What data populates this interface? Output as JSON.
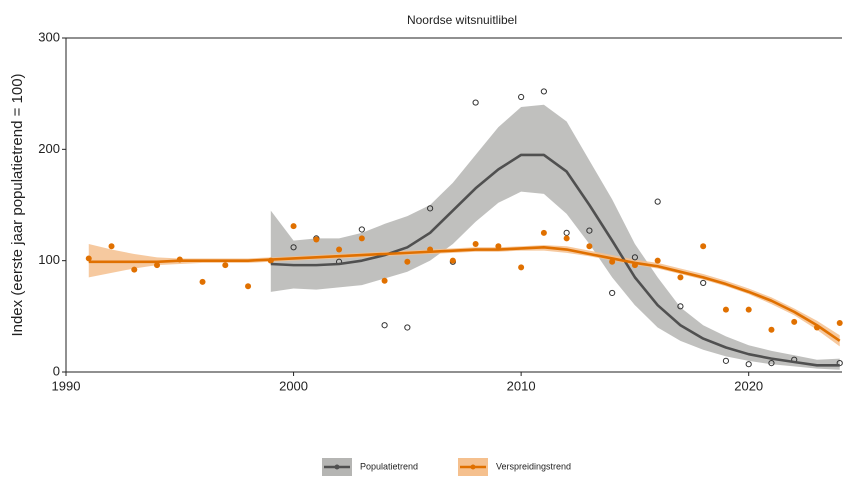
{
  "chart_data": {
    "type": "line",
    "title": "Noordse witsnuitlibel",
    "y_label": "Index (eerste jaar populatietrend = 100)",
    "xlim": [
      1990,
      2024.1
    ],
    "xticks": [
      1990,
      2000,
      2010,
      2020
    ],
    "ylim": [
      0,
      300
    ],
    "yticks": [
      0,
      100,
      200,
      300
    ],
    "grid": false,
    "legend": "bottom",
    "series": [
      {
        "name": "Populatietrend",
        "color": "#505050",
        "fill": "#b5b5b3",
        "x": [
          1999,
          2000,
          2001,
          2002,
          2003,
          2004,
          2005,
          2006,
          2007,
          2008,
          2009,
          2010,
          2011,
          2012,
          2013,
          2014,
          2015,
          2016,
          2017,
          2018,
          2019,
          2020,
          2021,
          2022,
          2023,
          2024
        ],
        "values": [
          97,
          96,
          96,
          97,
          100,
          105,
          112,
          125,
          145,
          165,
          182,
          195,
          195,
          180,
          150,
          118,
          85,
          60,
          42,
          30,
          22,
          16,
          12,
          9,
          6,
          6
        ],
        "lower": [
          72,
          75,
          74,
          76,
          78,
          84,
          90,
          100,
          115,
          135,
          152,
          162,
          160,
          142,
          115,
          85,
          60,
          40,
          28,
          20,
          14,
          10,
          7,
          5,
          3,
          2
        ],
        "upper": [
          145,
          118,
          120,
          120,
          125,
          133,
          140,
          150,
          170,
          195,
          220,
          238,
          240,
          225,
          190,
          155,
          115,
          85,
          58,
          42,
          32,
          24,
          19,
          15,
          11,
          12
        ]
      },
      {
        "name": "Verspreidingstrend",
        "color": "#e07000",
        "fill": "#f5c08e",
        "x": [
          1991,
          1992,
          1993,
          1994,
          1995,
          1996,
          1997,
          1998,
          1999,
          2000,
          2001,
          2002,
          2003,
          2004,
          2005,
          2006,
          2007,
          2008,
          2009,
          2010,
          2011,
          2012,
          2013,
          2014,
          2015,
          2016,
          2017,
          2018,
          2019,
          2020,
          2021,
          2022,
          2023,
          2024
        ],
        "values": [
          99,
          99,
          99,
          99,
          100,
          100,
          100,
          100,
          101,
          102,
          103,
          104,
          105,
          106,
          107,
          108,
          109,
          110,
          110,
          111,
          112,
          110,
          106,
          102,
          98,
          95,
          90,
          85,
          79,
          72,
          64,
          54,
          42,
          28
        ],
        "lower": [
          85,
          89,
          93,
          96,
          97,
          98,
          98,
          98,
          99,
          100,
          101,
          102,
          103,
          104,
          105,
          106,
          107,
          108,
          108,
          109,
          109,
          107,
          104,
          100,
          96,
          93,
          88,
          83,
          77,
          70,
          61,
          51,
          38,
          23
        ],
        "upper": [
          115,
          110,
          106,
          103,
          102,
          102,
          102,
          102,
          103,
          104,
          105,
          106,
          107,
          108,
          109,
          110,
          111,
          112,
          112,
          113,
          114,
          113,
          109,
          105,
          101,
          98,
          93,
          88,
          82,
          75,
          67,
          57,
          46,
          33
        ]
      }
    ],
    "observations": [
      {
        "marker": "open-circle",
        "color": "#333333",
        "x": [
          2000,
          2001,
          2002,
          2003,
          2004,
          2005,
          2006,
          2007,
          2008,
          2010,
          2011,
          2012,
          2013,
          2014,
          2015,
          2016,
          2017,
          2018,
          2019,
          2020,
          2021,
          2022,
          2024
        ],
        "values": [
          112,
          120,
          99,
          128,
          42,
          40,
          147,
          99,
          242,
          247,
          252,
          125,
          127,
          71,
          103,
          153,
          59,
          80,
          10,
          7,
          8,
          11,
          8
        ]
      },
      {
        "marker": "dot",
        "color": "#e07000",
        "x": [
          1991,
          1992,
          1993,
          1994,
          1995,
          1996,
          1997,
          1998,
          1999,
          2000,
          2001,
          2002,
          2003,
          2004,
          2005,
          2006,
          2007,
          2008,
          2009,
          2010,
          2011,
          2012,
          2013,
          2014,
          2015,
          2016,
          2017,
          2018,
          2019,
          2020,
          2021,
          2022,
          2023,
          2024
        ],
        "values": [
          102,
          113,
          92,
          96,
          101,
          81,
          96,
          77,
          100,
          131,
          119,
          110,
          120,
          82,
          99,
          110,
          100,
          115,
          113,
          94,
          125,
          120,
          113,
          99,
          96,
          100,
          85,
          113,
          56,
          56,
          38,
          45,
          40,
          44
        ]
      }
    ]
  }
}
